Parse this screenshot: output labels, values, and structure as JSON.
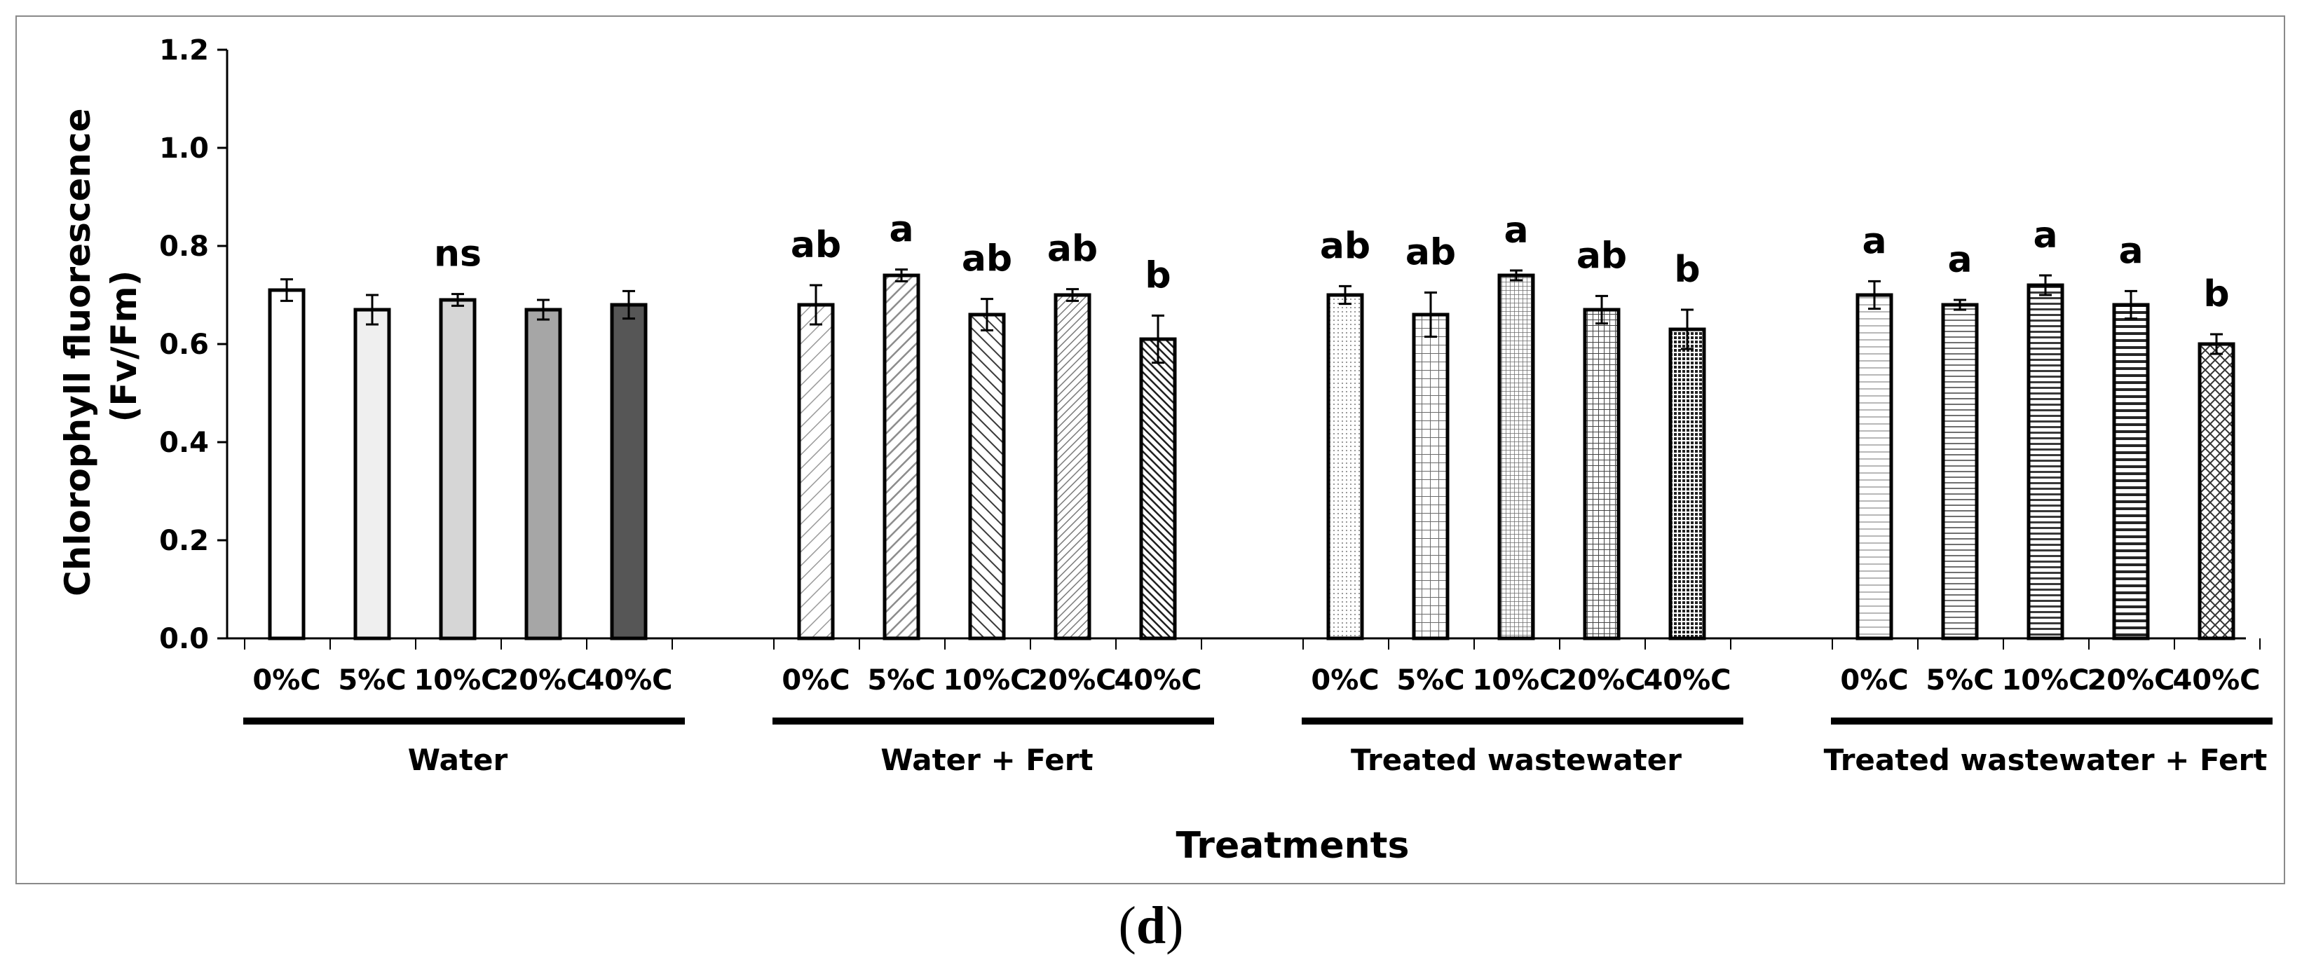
{
  "chart_data": {
    "type": "bar",
    "ylabel_line1": "Chlorophyll fluorescence",
    "ylabel_line2": "(Fv/Fm)",
    "xlabel": "Treatments",
    "ylim": [
      0,
      1.2
    ],
    "y_ticks": [
      "0.0",
      "0.2",
      "0.4",
      "0.6",
      "0.8",
      "1.0",
      "1.2"
    ],
    "groups": [
      {
        "name": "Water",
        "bars": [
          {
            "label": "0%C",
            "value": 0.71,
            "error": 0.022,
            "letter": "",
            "fill": "#ffffff"
          },
          {
            "label": "5%C",
            "value": 0.67,
            "error": 0.03,
            "letter": "",
            "fill": "#efefef"
          },
          {
            "label": "10%C",
            "value": 0.69,
            "error": 0.012,
            "letter": "ns",
            "fill": "#d6d6d6"
          },
          {
            "label": "20%C",
            "value": 0.67,
            "error": 0.02,
            "letter": "",
            "fill": "#a6a6a6"
          },
          {
            "label": "40%C",
            "value": 0.68,
            "error": 0.028,
            "letter": "",
            "fill": "#565656"
          }
        ]
      },
      {
        "name": "Water + Fert",
        "bars": [
          {
            "label": "0%C",
            "value": 0.68,
            "error": 0.04,
            "letter": "ab",
            "fill": "diag-light"
          },
          {
            "label": "5%C",
            "value": 0.74,
            "error": 0.012,
            "letter": "a",
            "fill": "diag-wide"
          },
          {
            "label": "10%C",
            "value": 0.66,
            "error": 0.032,
            "letter": "ab",
            "fill": "diag-dark"
          },
          {
            "label": "20%C",
            "value": 0.7,
            "error": 0.012,
            "letter": "ab",
            "fill": "diag-dense"
          },
          {
            "label": "40%C",
            "value": 0.61,
            "error": 0.048,
            "letter": "b",
            "fill": "diag-heavy"
          }
        ]
      },
      {
        "name": "Treated wastewater",
        "bars": [
          {
            "label": "0%C",
            "value": 0.7,
            "error": 0.018,
            "letter": "ab",
            "fill": "dots"
          },
          {
            "label": "5%C",
            "value": 0.66,
            "error": 0.045,
            "letter": "ab",
            "fill": "grid-wide"
          },
          {
            "label": "10%C",
            "value": 0.74,
            "error": 0.01,
            "letter": "a",
            "fill": "grid-fine"
          },
          {
            "label": "20%C",
            "value": 0.67,
            "error": 0.028,
            "letter": "ab",
            "fill": "grid-medium"
          },
          {
            "label": "40%C",
            "value": 0.63,
            "error": 0.04,
            "letter": "b",
            "fill": "grid-dense"
          }
        ]
      },
      {
        "name": "Treated wastewater + Fert",
        "bars": [
          {
            "label": "0%C",
            "value": 0.7,
            "error": 0.028,
            "letter": "a",
            "fill": "hlines-light"
          },
          {
            "label": "5%C",
            "value": 0.68,
            "error": 0.01,
            "letter": "a",
            "fill": "hlines-medium"
          },
          {
            "label": "10%C",
            "value": 0.72,
            "error": 0.02,
            "letter": "a",
            "fill": "hlines-dense"
          },
          {
            "label": "20%C",
            "value": 0.68,
            "error": 0.028,
            "letter": "a",
            "fill": "hlines-heavy"
          },
          {
            "label": "40%C",
            "value": 0.6,
            "error": 0.02,
            "letter": "b",
            "fill": "crosshatch"
          }
        ]
      }
    ]
  },
  "caption": {
    "open": "(",
    "letter": "d",
    "close": ")"
  }
}
